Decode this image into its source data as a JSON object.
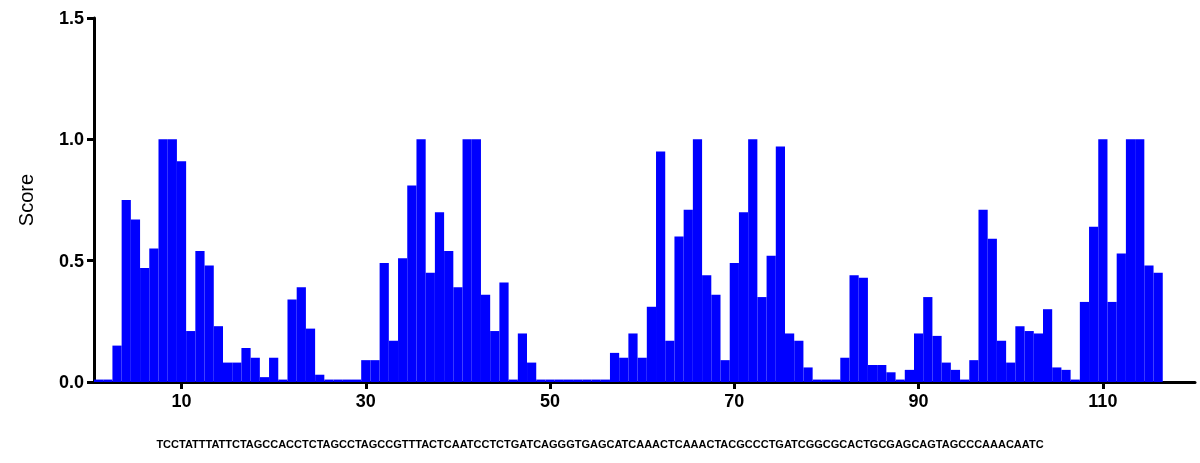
{
  "chart_data": {
    "type": "bar",
    "ylabel": "Score",
    "x": [
      1,
      2,
      3,
      4,
      5,
      6,
      7,
      8,
      9,
      10,
      11,
      12,
      13,
      14,
      15,
      16,
      17,
      18,
      19,
      20,
      21,
      22,
      23,
      24,
      25,
      26,
      27,
      28,
      29,
      30,
      31,
      32,
      33,
      34,
      35,
      36,
      37,
      38,
      39,
      40,
      41,
      42,
      43,
      44,
      45,
      46,
      47,
      48,
      49,
      50,
      51,
      52,
      53,
      54,
      55,
      56,
      57,
      58,
      59,
      60,
      61,
      62,
      63,
      64,
      65,
      66,
      67,
      68,
      69,
      70,
      71,
      72,
      73,
      74,
      75,
      76,
      77,
      78,
      79,
      80,
      81,
      82,
      83,
      84,
      85,
      86,
      87,
      88,
      89,
      90,
      91,
      92,
      93,
      94,
      95,
      96,
      97,
      98,
      99,
      100,
      101,
      102,
      103,
      104,
      105,
      106,
      107,
      108,
      109,
      110,
      111,
      112,
      113,
      114,
      115,
      116
    ],
    "values": [
      0.01,
      0.01,
      0.15,
      0.75,
      0.67,
      0.47,
      0.55,
      1.0,
      1.0,
      0.91,
      0.21,
      0.54,
      0.48,
      0.23,
      0.08,
      0.08,
      0.14,
      0.1,
      0.02,
      0.1,
      0.01,
      0.34,
      0.39,
      0.22,
      0.03,
      0.01,
      0.01,
      0.01,
      0.01,
      0.09,
      0.09,
      0.49,
      0.17,
      0.51,
      0.81,
      1.0,
      0.45,
      0.7,
      0.54,
      0.39,
      1.0,
      1.0,
      0.36,
      0.21,
      0.41,
      0.01,
      0.2,
      0.08,
      0.01,
      0.01,
      0.01,
      0.01,
      0.01,
      0.01,
      0.01,
      0.01,
      0.12,
      0.1,
      0.2,
      0.1,
      0.31,
      0.95,
      0.17,
      0.6,
      0.71,
      1.0,
      0.44,
      0.36,
      0.09,
      0.49,
      0.7,
      1.0,
      0.35,
      0.52,
      0.97,
      0.2,
      0.17,
      0.06,
      0.01,
      0.01,
      0.01,
      0.1,
      0.44,
      0.43,
      0.07,
      0.07,
      0.04,
      0.01,
      0.05,
      0.2,
      0.35,
      0.19,
      0.08,
      0.05,
      0.01,
      0.09,
      0.71,
      0.59,
      0.17,
      0.08,
      0.23,
      0.21,
      0.2,
      0.3,
      0.06,
      0.05,
      0.01,
      0.33,
      0.64,
      1.0,
      0.33,
      0.53,
      1.0,
      1.0,
      0.48,
      0.45
    ],
    "color": "#0000ff",
    "xlim": [
      0.5,
      120
    ],
    "xticks": [
      10,
      30,
      50,
      70,
      90,
      110
    ],
    "ylim": [
      0,
      1.5
    ],
    "yticks": [
      {
        "value": 0,
        "label": "0.0"
      },
      {
        "value": 0.5,
        "label": "0.5"
      },
      {
        "value": 1,
        "label": "1.0"
      },
      {
        "value": 1.5,
        "label": "1.5"
      }
    ],
    "grid": false,
    "annotations": [
      "TCCTATTTATTCTAGCCACCTCTAGCCTAGCCGTTTACTCAATCCTCTGATCAGGGTGAGCATCAAACTCAAACTACGCCCTGATCGGCGCACTGCGAGCAGTAGCCCAAACAATC"
    ]
  }
}
